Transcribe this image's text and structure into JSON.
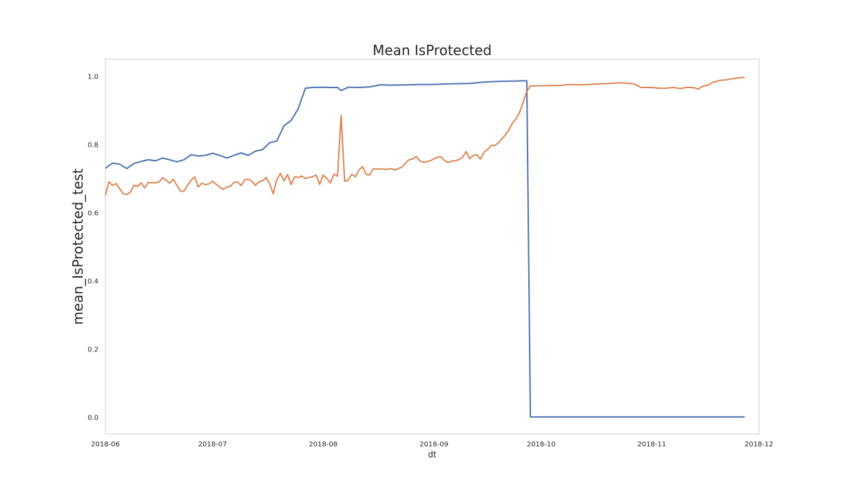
{
  "chart_data": {
    "type": "line",
    "title": "Mean IsProtected",
    "xlabel": "dt",
    "ylabel": "mean_IsProtected_test",
    "x_range": [
      "2018-06-01",
      "2018-12-01"
    ],
    "ylim": [
      -0.05,
      1.05
    ],
    "x_ticks": [
      "2018-06",
      "2018-07",
      "2018-08",
      "2018-09",
      "2018-10",
      "2018-11",
      "2018-12"
    ],
    "y_ticks": [
      "0.0",
      "0.2",
      "0.4",
      "0.6",
      "0.8",
      "1.0"
    ],
    "grid": false,
    "series": [
      {
        "color": "#4c72b0",
        "points": [
          [
            "2018-06-01",
            0.73
          ],
          [
            "2018-06-03",
            0.745
          ],
          [
            "2018-06-05",
            0.742
          ],
          [
            "2018-06-07",
            0.729
          ],
          [
            "2018-06-09",
            0.744
          ],
          [
            "2018-06-11",
            0.75
          ],
          [
            "2018-06-13",
            0.755
          ],
          [
            "2018-06-15",
            0.752
          ],
          [
            "2018-06-17",
            0.76
          ],
          [
            "2018-06-19",
            0.755
          ],
          [
            "2018-06-21",
            0.749
          ],
          [
            "2018-06-23",
            0.755
          ],
          [
            "2018-06-25",
            0.77
          ],
          [
            "2018-06-27",
            0.766
          ],
          [
            "2018-06-29",
            0.768
          ],
          [
            "2018-07-01",
            0.774
          ],
          [
            "2018-07-03",
            0.768
          ],
          [
            "2018-07-05",
            0.76
          ],
          [
            "2018-07-07",
            0.768
          ],
          [
            "2018-07-09",
            0.775
          ],
          [
            "2018-07-11",
            0.768
          ],
          [
            "2018-07-13",
            0.78
          ],
          [
            "2018-07-15",
            0.785
          ],
          [
            "2018-07-17",
            0.805
          ],
          [
            "2018-07-19",
            0.81
          ],
          [
            "2018-07-21",
            0.855
          ],
          [
            "2018-07-23",
            0.87
          ],
          [
            "2018-07-25",
            0.905
          ],
          [
            "2018-07-27",
            0.965
          ],
          [
            "2018-07-29",
            0.967
          ],
          [
            "2018-08-01",
            0.968
          ],
          [
            "2018-08-03",
            0.967
          ],
          [
            "2018-08-05",
            0.967
          ],
          [
            "2018-08-06",
            0.958
          ],
          [
            "2018-08-08",
            0.968
          ],
          [
            "2018-08-11",
            0.967
          ],
          [
            "2018-08-14",
            0.969
          ],
          [
            "2018-08-17",
            0.975
          ],
          [
            "2018-08-20",
            0.974
          ],
          [
            "2018-08-25",
            0.975
          ],
          [
            "2018-08-28",
            0.976
          ],
          [
            "2018-09-01",
            0.976
          ],
          [
            "2018-09-06",
            0.978
          ],
          [
            "2018-09-11",
            0.979
          ],
          [
            "2018-09-15",
            0.983
          ],
          [
            "2018-09-19",
            0.985
          ],
          [
            "2018-09-23",
            0.986
          ],
          [
            "2018-09-27",
            0.987
          ],
          [
            "2018-09-28",
            0.0
          ],
          [
            "2018-10-15",
            0.0
          ],
          [
            "2018-11-01",
            0.0
          ],
          [
            "2018-11-15",
            0.0
          ],
          [
            "2018-11-27",
            0.0
          ]
        ]
      },
      {
        "color": "#dd8452",
        "points": [
          [
            "2018-06-01",
            0.65
          ],
          [
            "2018-06-02",
            0.69
          ],
          [
            "2018-06-03",
            0.68
          ],
          [
            "2018-06-04",
            0.685
          ],
          [
            "2018-06-06",
            0.655
          ],
          [
            "2018-06-07",
            0.653
          ],
          [
            "2018-06-08",
            0.66
          ],
          [
            "2018-06-09",
            0.68
          ],
          [
            "2018-06-10",
            0.677
          ],
          [
            "2018-06-11",
            0.687
          ],
          [
            "2018-06-12",
            0.672
          ],
          [
            "2018-06-13",
            0.688
          ],
          [
            "2018-06-15",
            0.687
          ],
          [
            "2018-06-16",
            0.69
          ],
          [
            "2018-06-17",
            0.702
          ],
          [
            "2018-06-18",
            0.695
          ],
          [
            "2018-06-19",
            0.686
          ],
          [
            "2018-06-20",
            0.698
          ],
          [
            "2018-06-22",
            0.663
          ],
          [
            "2018-06-23",
            0.663
          ],
          [
            "2018-06-24",
            0.68
          ],
          [
            "2018-06-25",
            0.695
          ],
          [
            "2018-06-26",
            0.705
          ],
          [
            "2018-06-27",
            0.675
          ],
          [
            "2018-06-28",
            0.686
          ],
          [
            "2018-06-29",
            0.682
          ],
          [
            "2018-06-30",
            0.684
          ],
          [
            "2018-07-01",
            0.692
          ],
          [
            "2018-07-02",
            0.683
          ],
          [
            "2018-07-03",
            0.675
          ],
          [
            "2018-07-04",
            0.668
          ],
          [
            "2018-07-05",
            0.675
          ],
          [
            "2018-07-06",
            0.677
          ],
          [
            "2018-07-07",
            0.688
          ],
          [
            "2018-07-08",
            0.69
          ],
          [
            "2018-07-09",
            0.679
          ],
          [
            "2018-07-10",
            0.696
          ],
          [
            "2018-07-11",
            0.698
          ],
          [
            "2018-07-12",
            0.693
          ],
          [
            "2018-07-13",
            0.68
          ],
          [
            "2018-07-14",
            0.69
          ],
          [
            "2018-07-15",
            0.693
          ],
          [
            "2018-07-16",
            0.703
          ],
          [
            "2018-07-17",
            0.685
          ],
          [
            "2018-07-18",
            0.655
          ],
          [
            "2018-07-19",
            0.697
          ],
          [
            "2018-07-20",
            0.715
          ],
          [
            "2018-07-21",
            0.693
          ],
          [
            "2018-07-22",
            0.712
          ],
          [
            "2018-07-23",
            0.682
          ],
          [
            "2018-07-24",
            0.705
          ],
          [
            "2018-07-25",
            0.703
          ],
          [
            "2018-07-26",
            0.707
          ],
          [
            "2018-07-27",
            0.7
          ],
          [
            "2018-07-28",
            0.703
          ],
          [
            "2018-07-29",
            0.705
          ],
          [
            "2018-07-30",
            0.71
          ],
          [
            "2018-07-31",
            0.683
          ],
          [
            "2018-08-01",
            0.71
          ],
          [
            "2018-08-02",
            0.7
          ],
          [
            "2018-08-03",
            0.687
          ],
          [
            "2018-08-04",
            0.713
          ],
          [
            "2018-08-05",
            0.707
          ],
          [
            "2018-08-06",
            0.885
          ],
          [
            "2018-08-07",
            0.692
          ],
          [
            "2018-08-08",
            0.695
          ],
          [
            "2018-08-09",
            0.713
          ],
          [
            "2018-08-10",
            0.705
          ],
          [
            "2018-08-11",
            0.725
          ],
          [
            "2018-08-12",
            0.735
          ],
          [
            "2018-08-13",
            0.712
          ],
          [
            "2018-08-14",
            0.71
          ],
          [
            "2018-08-15",
            0.728
          ],
          [
            "2018-08-17",
            0.728
          ],
          [
            "2018-08-19",
            0.727
          ],
          [
            "2018-08-20",
            0.729
          ],
          [
            "2018-08-21",
            0.725
          ],
          [
            "2018-08-23",
            0.733
          ],
          [
            "2018-08-24",
            0.745
          ],
          [
            "2018-08-25",
            0.755
          ],
          [
            "2018-08-26",
            0.757
          ],
          [
            "2018-08-27",
            0.765
          ],
          [
            "2018-08-28",
            0.752
          ],
          [
            "2018-08-29",
            0.747
          ],
          [
            "2018-08-31",
            0.752
          ],
          [
            "2018-09-01",
            0.758
          ],
          [
            "2018-09-02",
            0.762
          ],
          [
            "2018-09-03",
            0.763
          ],
          [
            "2018-09-04",
            0.752
          ],
          [
            "2018-09-05",
            0.747
          ],
          [
            "2018-09-06",
            0.751
          ],
          [
            "2018-09-07",
            0.752
          ],
          [
            "2018-09-08",
            0.756
          ],
          [
            "2018-09-09",
            0.762
          ],
          [
            "2018-09-10",
            0.779
          ],
          [
            "2018-09-11",
            0.758
          ],
          [
            "2018-09-12",
            0.768
          ],
          [
            "2018-09-13",
            0.77
          ],
          [
            "2018-09-14",
            0.757
          ],
          [
            "2018-09-15",
            0.777
          ],
          [
            "2018-09-16",
            0.785
          ],
          [
            "2018-09-17",
            0.797
          ],
          [
            "2018-09-18",
            0.797
          ],
          [
            "2018-09-19",
            0.804
          ],
          [
            "2018-09-20",
            0.816
          ],
          [
            "2018-09-21",
            0.828
          ],
          [
            "2018-09-22",
            0.843
          ],
          [
            "2018-09-23",
            0.863
          ],
          [
            "2018-09-24",
            0.875
          ],
          [
            "2018-09-25",
            0.895
          ],
          [
            "2018-09-26",
            0.925
          ],
          [
            "2018-09-27",
            0.955
          ],
          [
            "2018-09-28",
            0.972
          ],
          [
            "2018-10-01",
            0.972
          ],
          [
            "2018-10-03",
            0.973
          ],
          [
            "2018-10-06",
            0.973
          ],
          [
            "2018-10-09",
            0.976
          ],
          [
            "2018-10-12",
            0.975
          ],
          [
            "2018-10-16",
            0.977
          ],
          [
            "2018-10-20",
            0.979
          ],
          [
            "2018-10-23",
            0.981
          ],
          [
            "2018-10-27",
            0.978
          ],
          [
            "2018-10-29",
            0.967
          ],
          [
            "2018-11-01",
            0.967
          ],
          [
            "2018-11-03",
            0.965
          ],
          [
            "2018-11-05",
            0.965
          ],
          [
            "2018-11-07",
            0.967
          ],
          [
            "2018-11-09",
            0.964
          ],
          [
            "2018-11-11",
            0.968
          ],
          [
            "2018-11-13",
            0.966
          ],
          [
            "2018-11-14",
            0.962
          ],
          [
            "2018-11-15",
            0.97
          ],
          [
            "2018-11-17",
            0.975
          ],
          [
            "2018-11-18",
            0.982
          ],
          [
            "2018-11-20",
            0.988
          ],
          [
            "2018-11-22",
            0.99
          ],
          [
            "2018-11-25",
            0.995
          ],
          [
            "2018-11-27",
            0.997
          ]
        ]
      }
    ]
  }
}
